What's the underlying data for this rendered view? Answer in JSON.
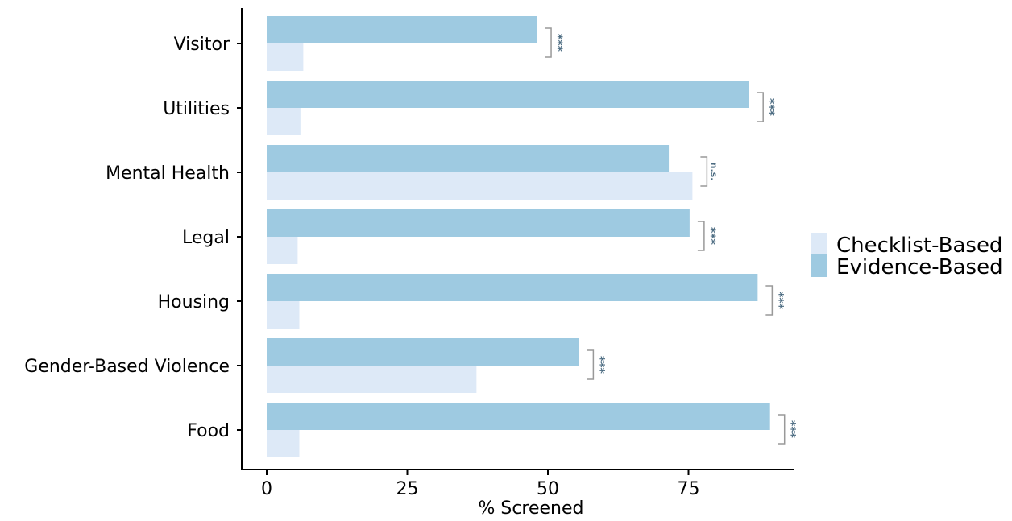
{
  "chart_data": {
    "type": "bar",
    "orientation": "horizontal",
    "title": "",
    "xlabel": "% Screened",
    "ylabel": "",
    "xlim": [
      -4.5,
      94
    ],
    "xticks": [
      0,
      25,
      50,
      75
    ],
    "xtick_labels": [
      "0",
      "25",
      "50",
      "75"
    ],
    "grid": false,
    "legend_position": "right",
    "categories": [
      "Visitor",
      "Utilities",
      "Mental Health",
      "Legal",
      "Housing",
      "Gender-Based Violence",
      "Food"
    ],
    "series": [
      {
        "name": "Checklist-Based",
        "color": "#dde9f7",
        "values": [
          6.5,
          6.0,
          75.7,
          5.5,
          5.8,
          37.3,
          5.8
        ]
      },
      {
        "name": "Evidence-Based",
        "color": "#9ecae1",
        "values": [
          48.0,
          85.7,
          71.5,
          75.2,
          87.3,
          55.5,
          89.5
        ]
      }
    ],
    "annotations": [
      "***",
      "***",
      "n.s.",
      "***",
      "***",
      "***",
      "***"
    ],
    "annotation_color": "#4a6a80",
    "bracket_color": "#999999"
  }
}
